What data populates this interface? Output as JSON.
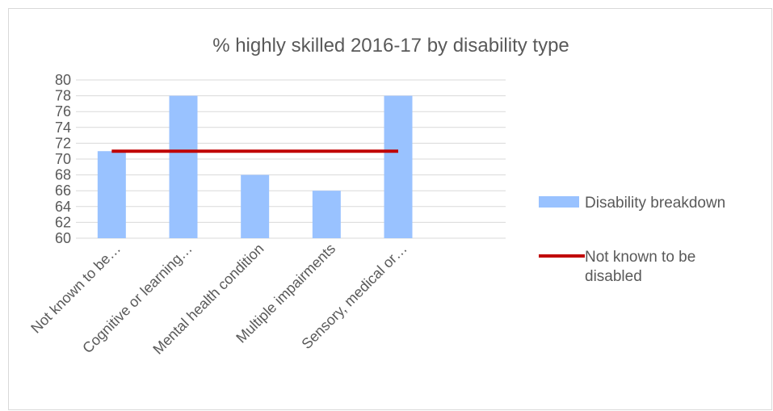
{
  "chart_data": {
    "type": "bar",
    "title": "% highly skilled 2016-17 by disability type",
    "categories": [
      "Not known to be…",
      "Cognitive or learning…",
      "Mental health condition",
      "Multiple impairments",
      "Sensory, medical or…"
    ],
    "series": [
      {
        "name": "Disability breakdown",
        "type": "bar",
        "values": [
          71,
          78,
          68,
          66,
          78
        ]
      },
      {
        "name": "Not known to be disabled",
        "type": "line",
        "values": [
          71,
          71,
          71,
          71,
          71
        ]
      }
    ],
    "ylim": [
      60,
      80
    ],
    "yticks": [
      "80",
      "78",
      "76",
      "74",
      "72",
      "70",
      "68",
      "66",
      "64",
      "62",
      "60"
    ],
    "grid": true,
    "legend_position": "right",
    "colors": {
      "bar": "#99c2ff",
      "line": "#c00000",
      "grid": "#d9d9d9",
      "text": "#595959"
    }
  }
}
